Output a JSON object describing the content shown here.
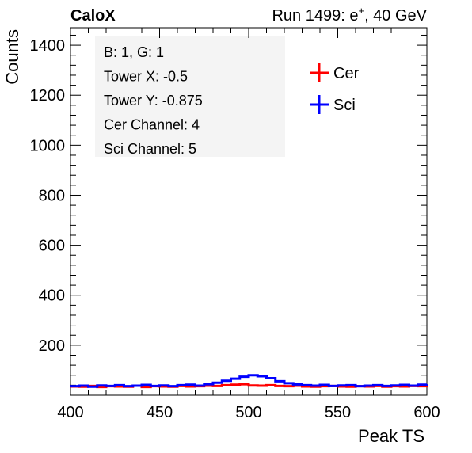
{
  "header": {
    "left": "CaloX",
    "right_prefix": "Run 1499: e",
    "right_sup": "+",
    "right_suffix": ", 40 GeV"
  },
  "info_box": {
    "lines": [
      "B: 1, G: 1",
      "Tower X: -0.5",
      "Tower Y: -0.875",
      "Cer Channel: 4",
      "Sci Channel: 5"
    ]
  },
  "chart_data": {
    "type": "line",
    "xlabel": "Peak TS",
    "ylabel": "Counts",
    "xlim": [
      400,
      600
    ],
    "ylim": [
      0,
      1470
    ],
    "x_ticks": [
      400,
      450,
      500,
      550,
      600
    ],
    "y_ticks": [
      200,
      400,
      600,
      800,
      1000,
      1200,
      1400
    ],
    "legend_position": "top-right (inside)",
    "grid": false,
    "series": [
      {
        "name": "Cer",
        "color": "#ff0000",
        "x": [
          400,
          405,
          410,
          415,
          420,
          425,
          430,
          435,
          440,
          445,
          450,
          455,
          460,
          465,
          470,
          475,
          480,
          485,
          490,
          495,
          500,
          505,
          510,
          515,
          520,
          525,
          530,
          535,
          540,
          545,
          550,
          555,
          560,
          565,
          570,
          575,
          580,
          585,
          590,
          595,
          600
        ],
        "values": [
          35,
          34,
          37,
          33,
          36,
          35,
          34,
          38,
          33,
          36,
          35,
          34,
          37,
          35,
          36,
          38,
          37,
          40,
          42,
          44,
          39,
          38,
          40,
          37,
          36,
          38,
          35,
          34,
          36,
          37,
          35,
          34,
          36,
          35,
          37,
          34,
          36,
          35,
          37,
          36,
          38
        ]
      },
      {
        "name": "Sci",
        "color": "#0000ff",
        "x": [
          400,
          405,
          410,
          415,
          420,
          425,
          430,
          435,
          440,
          445,
          450,
          455,
          460,
          465,
          470,
          475,
          480,
          485,
          490,
          495,
          500,
          505,
          510,
          515,
          520,
          525,
          530,
          535,
          540,
          545,
          550,
          555,
          560,
          565,
          570,
          575,
          580,
          585,
          590,
          595,
          600
        ],
        "values": [
          36,
          38,
          34,
          39,
          37,
          40,
          36,
          38,
          41,
          37,
          39,
          36,
          40,
          42,
          38,
          44,
          50,
          58,
          66,
          74,
          80,
          76,
          68,
          56,
          48,
          43,
          40,
          38,
          41,
          37,
          39,
          40,
          36,
          38,
          40,
          37,
          39,
          41,
          38,
          42,
          44
        ]
      }
    ]
  }
}
